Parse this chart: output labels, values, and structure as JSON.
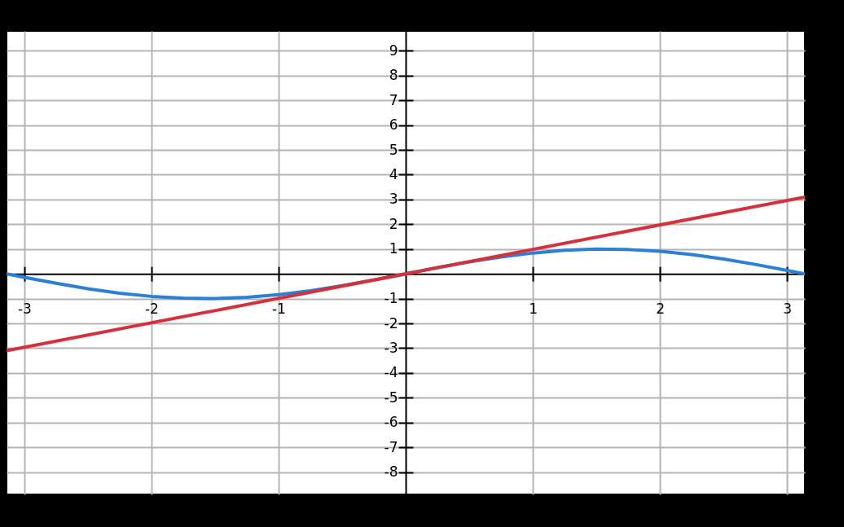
{
  "chart_data": {
    "type": "line",
    "x": [
      -3.14,
      -3,
      -2.75,
      -2.5,
      -2.25,
      -2,
      -1.75,
      -1.5,
      -1.25,
      -1,
      -0.75,
      -0.5,
      -0.25,
      0,
      0.25,
      0.5,
      0.75,
      1,
      1.25,
      1.5,
      1.75,
      2,
      2.25,
      2.5,
      2.75,
      3,
      3.14
    ],
    "series": [
      {
        "color": "#2b7fd4",
        "values": [
          0.0,
          -0.14,
          -0.38,
          -0.6,
          -0.78,
          -0.91,
          -0.98,
          -1.0,
          -0.95,
          -0.84,
          -0.68,
          -0.48,
          -0.25,
          0,
          0.25,
          0.48,
          0.68,
          0.84,
          0.95,
          1.0,
          0.98,
          0.91,
          0.78,
          0.6,
          0.38,
          0.14,
          0.0
        ]
      },
      {
        "color": "#d7303a",
        "x": [
          -3.14,
          3.14
        ],
        "values": [
          -3.1,
          3.1
        ]
      }
    ],
    "xlim": [
      -3.14,
      3.14
    ],
    "ylim": [
      -8.9,
      9.8
    ],
    "xticks": [
      -3,
      -2,
      -1,
      1,
      2,
      3
    ],
    "yticks": [
      -8,
      -7,
      -6,
      -5,
      -4,
      -3,
      -2,
      -1,
      1,
      2,
      3,
      4,
      5,
      6,
      7,
      8,
      9
    ],
    "grid": true,
    "line_style": "solid"
  }
}
